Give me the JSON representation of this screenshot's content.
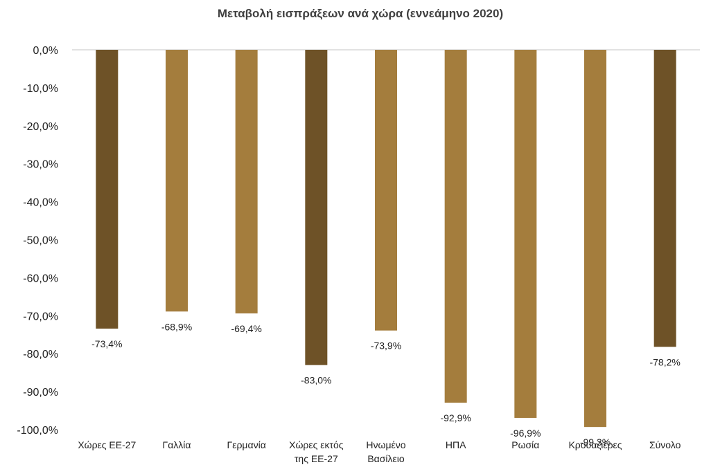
{
  "chart_data": {
    "type": "bar",
    "title": "Μεταβολή εισπράξεων ανά χώρα (εννεάμηνο 2020)",
    "xlabel": "",
    "ylabel": "",
    "ylim": [
      -100,
      0
    ],
    "yticks": [
      "0,0%",
      "-10,0%",
      "-20,0%",
      "-30,0%",
      "-40,0%",
      "-50,0%",
      "-60,0%",
      "-70,0%",
      "-80,0%",
      "-90,0%",
      "-100,0%"
    ],
    "grid": false,
    "legend": "none",
    "categories": [
      [
        "Χώρες ΕΕ-27"
      ],
      [
        "Γαλλία"
      ],
      [
        "Γερμανία"
      ],
      [
        "Χώρες εκτός",
        "της ΕΕ-27"
      ],
      [
        "Ηνωμένο",
        "Βασίλειο"
      ],
      [
        "ΗΠΑ"
      ],
      [
        "Ρωσία"
      ],
      [
        "Κρουαζιέρες"
      ],
      [
        "Σύνολο"
      ]
    ],
    "values": [
      -73.4,
      -68.9,
      -69.4,
      -83.0,
      -73.9,
      -92.9,
      -96.9,
      -99.3,
      -78.2
    ],
    "data_labels": [
      "-73,4%",
      "-68,9%",
      "-69,4%",
      "-83,0%",
      "-73,9%",
      "-92,9%",
      "-96,9%",
      "-99,3%",
      "-78,2%"
    ],
    "colors": [
      "#6e5227",
      "#a47d3d",
      "#a47d3d",
      "#6e5227",
      "#a47d3d",
      "#a47d3d",
      "#a47d3d",
      "#a47d3d",
      "#6e5227"
    ],
    "axis_color": "#d9d9d9"
  }
}
